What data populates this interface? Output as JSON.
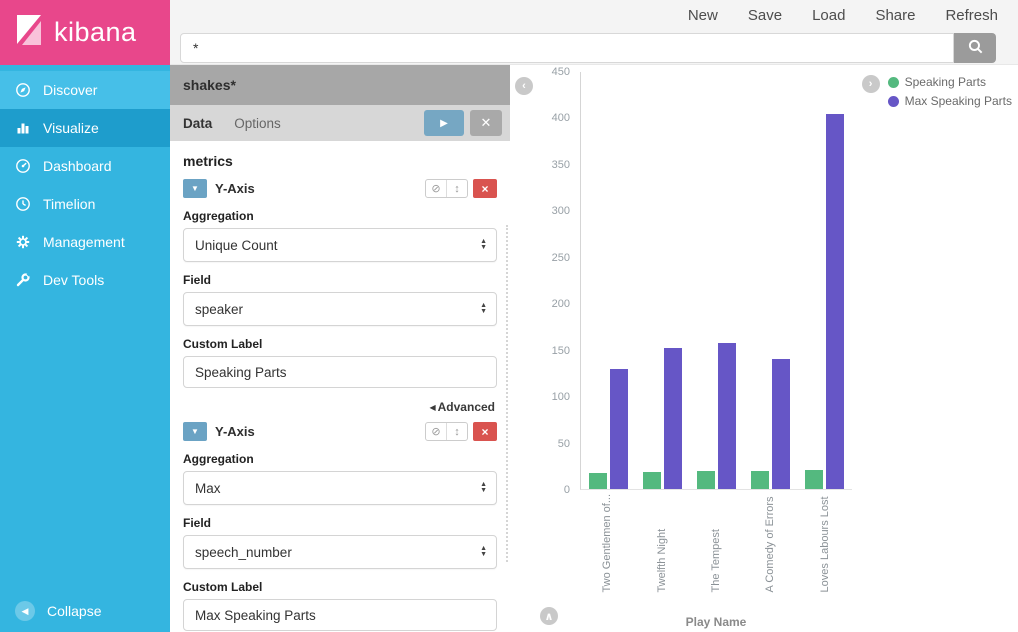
{
  "brand": {
    "name": "kibana"
  },
  "topnav": {
    "items": [
      "New",
      "Save",
      "Load",
      "Share",
      "Refresh"
    ]
  },
  "search": {
    "value": "*"
  },
  "sidebar": {
    "items": [
      {
        "label": "Discover",
        "icon": "discover-icon",
        "active": false
      },
      {
        "label": "Visualize",
        "icon": "visualize-icon",
        "active": true
      },
      {
        "label": "Dashboard",
        "icon": "dashboard-icon",
        "active": false
      },
      {
        "label": "Timelion",
        "icon": "timelion-icon",
        "active": false
      },
      {
        "label": "Management",
        "icon": "management-icon",
        "active": false
      },
      {
        "label": "Dev Tools",
        "icon": "devtools-icon",
        "active": false
      }
    ],
    "collapse": {
      "label": "Collapse"
    }
  },
  "editor": {
    "index_pattern": "shakes*",
    "tabs": [
      {
        "label": "Data",
        "active": true
      },
      {
        "label": "Options",
        "active": false
      }
    ],
    "section_title": "metrics",
    "metrics": [
      {
        "header": "Y-Axis",
        "aggregation_label": "Aggregation",
        "aggregation_value": "Unique Count",
        "field_label": "Field",
        "field_value": "speaker",
        "custom_label_label": "Custom Label",
        "custom_label_value": "Speaking Parts",
        "advanced_label": "Advanced"
      },
      {
        "header": "Y-Axis",
        "aggregation_label": "Aggregation",
        "aggregation_value": "Max",
        "field_label": "Field",
        "field_value": "speech_number",
        "custom_label_label": "Custom Label",
        "custom_label_value": "Max Speaking Parts"
      }
    ]
  },
  "chart_data": {
    "type": "bar",
    "title": "",
    "xlabel": "Play Name",
    "ylabel": "",
    "ylim": [
      0,
      450
    ],
    "yticks": [
      0,
      50,
      100,
      150,
      200,
      250,
      300,
      350,
      400,
      450
    ],
    "grid": false,
    "legend_position": "top-right",
    "categories": [
      "Two Gentlemen of...",
      "Twelfth Night",
      "The Tempest",
      "A Comedy of Errors",
      "Loves Labours Lost"
    ],
    "series": [
      {
        "name": "Speaking Parts",
        "color": "#54b97f",
        "values": [
          17,
          18,
          19,
          19,
          20
        ]
      },
      {
        "name": "Max Speaking Parts",
        "color": "#6656c6",
        "values": [
          130,
          152,
          158,
          140,
          405
        ]
      }
    ]
  }
}
